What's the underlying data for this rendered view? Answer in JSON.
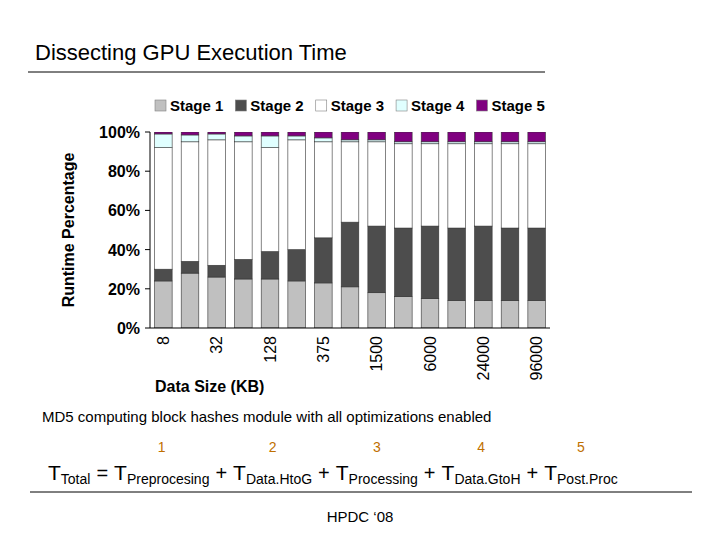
{
  "chart_data": {
    "type": "bar",
    "stacked": true,
    "grid": false,
    "legend": "top",
    "x_label": "Data Size (KB)",
    "y_label": "Runtime Percentage",
    "categories": [
      "8",
      null,
      "32",
      null,
      "128",
      null,
      "375",
      null,
      "1500",
      null,
      "6000",
      null,
      "24000",
      null,
      "96000"
    ],
    "ylim": [
      0,
      100
    ],
    "yticks": [
      {
        "value": 0,
        "label": "0%"
      },
      {
        "value": 20,
        "label": "20%"
      },
      {
        "value": 40,
        "label": "40%"
      },
      {
        "value": 60,
        "label": "60%"
      },
      {
        "value": 80,
        "label": "80%"
      },
      {
        "value": 100,
        "label": "100%"
      }
    ],
    "series": [
      {
        "name": "Stage 1",
        "color": "#c0c0c0",
        "values": [
          24,
          28,
          26,
          25,
          25,
          24,
          23,
          21,
          18,
          16,
          15,
          14,
          14,
          14,
          14
        ]
      },
      {
        "name": "Stage 2",
        "color": "#4d4d4d",
        "values": [
          6,
          6,
          6,
          10,
          14,
          16,
          23,
          33,
          34,
          35,
          37,
          37,
          38,
          37,
          37
        ]
      },
      {
        "name": "Stage 3",
        "color": "#ffffff",
        "values": [
          62,
          61,
          64,
          60,
          53,
          56,
          49,
          41,
          43,
          43,
          42,
          43,
          42,
          43,
          43
        ]
      },
      {
        "name": "Stage 4",
        "color": "#e0ffff",
        "values": [
          7,
          3.5,
          3,
          3,
          6,
          2,
          2,
          1,
          1,
          1,
          1,
          1,
          1,
          1,
          1
        ]
      },
      {
        "name": "Stage 5",
        "color": "#800080",
        "values": [
          1,
          1.5,
          1,
          2,
          2,
          2,
          3,
          4,
          4,
          5,
          5,
          5,
          5,
          5,
          5
        ]
      }
    ]
  },
  "slide": {
    "title": "Dissecting GPU Execution Time",
    "caption": "MD5 computing block hashes module with all optimizations enabled",
    "formula": {
      "lhs": {
        "base": "T",
        "sub": "Total"
      },
      "equals": "=",
      "plus": "+",
      "terms": [
        {
          "number": 1,
          "base": "T",
          "sub": "Preprocesing"
        },
        {
          "number": 2,
          "base": "T",
          "sub": "Data.HtoG"
        },
        {
          "number": 3,
          "base": "T",
          "sub": "Processing"
        },
        {
          "number": 4,
          "base": "T",
          "sub": "Data.GtoH"
        },
        {
          "number": 5,
          "base": "T",
          "sub": "Post.Proc"
        }
      ]
    },
    "footer": "HPDC ‘08"
  }
}
